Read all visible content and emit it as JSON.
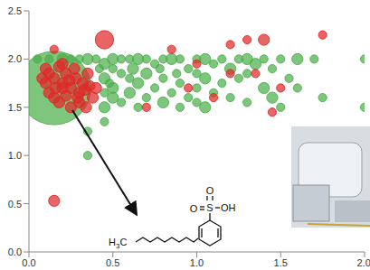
{
  "chart_data": {
    "type": "scatter",
    "xlim": [
      0,
      2
    ],
    "ylim": [
      0,
      2.5
    ],
    "xticks": [
      {
        "value": 0,
        "label": "0.0"
      },
      0.5,
      {
        "value": 1,
        "label": "1.0"
      },
      1.5,
      {
        "value": 2,
        "label": "2.0"
      }
    ],
    "yticks": [
      {
        "value": 0,
        "label": "0.0"
      },
      0.5,
      {
        "value": 1,
        "label": "1.0"
      },
      1.5,
      {
        "value": 2,
        "label": "2.0"
      },
      2.5
    ],
    "grid": false,
    "series": [
      {
        "color": "#4cae4c",
        "marker": "circle",
        "x": [
          0.15,
          0.05,
          0.12,
          0.2,
          0.25,
          0.3,
          0.35,
          0.4,
          0.5,
          0.55,
          0.6,
          0.65,
          0.7,
          0.8,
          0.85,
          0.9,
          1.0,
          1.05,
          1.15,
          1.25,
          1.3,
          1.4,
          1.5,
          1.6,
          1.7,
          2.0,
          0.45,
          0.75,
          1.1,
          1.35,
          0.42,
          0.5,
          0.62,
          0.78,
          0.95,
          1.2,
          1.45,
          0.55,
          0.7,
          0.88,
          1.0,
          1.3,
          0.45,
          0.6,
          0.8,
          1.05,
          1.25,
          1.55,
          0.48,
          0.65,
          0.9,
          1.15,
          0.5,
          0.75,
          1.0,
          1.4,
          1.6,
          0.45,
          0.6,
          0.85,
          1.1,
          0.5,
          0.7,
          0.95,
          1.2,
          1.45,
          1.75,
          0.55,
          0.8,
          1.0,
          1.3,
          0.45,
          0.65,
          0.9,
          1.05,
          1.5,
          2.0,
          0.35,
          0.35,
          0.45
        ],
        "y": [
          1.7,
          2.0,
          2.0,
          2.0,
          2.0,
          2.0,
          2.0,
          2.0,
          2.0,
          2.0,
          2.0,
          2.0,
          2.0,
          2.0,
          2.0,
          2.0,
          2.0,
          2.0,
          2.0,
          2.0,
          2.0,
          2.0,
          2.0,
          2.0,
          2.0,
          2.0,
          1.95,
          1.95,
          1.95,
          1.95,
          1.9,
          1.9,
          1.9,
          1.9,
          1.9,
          1.9,
          1.9,
          1.85,
          1.85,
          1.85,
          1.85,
          1.85,
          1.8,
          1.8,
          1.8,
          1.8,
          1.8,
          1.8,
          1.75,
          1.75,
          1.75,
          1.75,
          1.7,
          1.7,
          1.7,
          1.7,
          1.7,
          1.65,
          1.65,
          1.65,
          1.65,
          1.6,
          1.6,
          1.6,
          1.6,
          1.6,
          1.6,
          1.55,
          1.55,
          1.55,
          1.55,
          1.5,
          1.5,
          1.5,
          1.5,
          1.5,
          1.5,
          1.25,
          1.0,
          1.35
        ],
        "size": [
          100,
          1,
          1,
          2,
          1,
          1,
          2,
          1,
          2,
          1,
          1,
          2,
          1,
          1,
          2,
          1,
          1,
          2,
          1,
          1,
          2,
          1,
          1,
          2,
          1,
          1,
          2,
          1,
          1,
          2,
          1,
          1,
          2,
          1,
          1,
          2,
          1,
          1,
          2,
          1,
          1,
          1,
          2,
          1,
          1,
          2,
          1,
          1,
          1,
          2,
          1,
          1,
          2,
          1,
          1,
          2,
          1,
          1,
          2,
          1,
          1,
          2,
          1,
          1,
          1,
          2,
          1,
          1,
          2,
          1,
          1,
          2,
          1,
          1,
          2,
          1,
          1,
          1,
          1,
          1
        ]
      },
      {
        "color": "#e02828",
        "marker": "circle",
        "x": [
          0.45,
          0.15,
          0.15,
          0.1,
          0.12,
          0.15,
          0.18,
          0.2,
          0.22,
          0.25,
          0.28,
          0.3,
          0.32,
          0.35,
          0.38,
          0.12,
          0.15,
          0.18,
          0.2,
          0.22,
          0.25,
          0.27,
          0.3,
          0.33,
          0.36,
          0.1,
          0.16,
          0.24,
          0.29,
          0.34,
          0.4,
          0.2,
          0.08,
          1.3,
          1.4,
          1.75,
          1.2,
          0.85,
          1.0,
          1.2,
          1.35,
          0.95,
          1.1,
          1.5,
          0.7,
          1.45
        ],
        "y": [
          2.2,
          0.53,
          2.1,
          1.9,
          1.85,
          1.8,
          1.92,
          1.75,
          1.85,
          1.7,
          1.8,
          1.65,
          1.75,
          1.85,
          1.6,
          1.65,
          1.6,
          1.55,
          1.7,
          1.62,
          1.5,
          1.9,
          1.55,
          1.68,
          1.72,
          1.75,
          1.7,
          1.78,
          1.6,
          1.5,
          1.7,
          1.95,
          1.8,
          2.2,
          2.2,
          2.25,
          2.15,
          2.1,
          1.95,
          1.85,
          1.85,
          1.7,
          1.6,
          1.7,
          1.5,
          1.45
        ],
        "size": [
          6,
          2,
          1,
          2,
          2,
          2,
          2,
          2,
          2,
          2,
          2,
          2,
          2,
          2,
          2,
          2,
          2,
          2,
          2,
          2,
          2,
          2,
          2,
          2,
          2,
          2,
          2,
          2,
          2,
          2,
          2,
          2,
          2,
          1,
          2,
          1,
          1,
          1,
          1,
          1,
          1,
          1,
          1,
          1,
          1,
          1
        ]
      }
    ],
    "annotations": {
      "structure": {
        "methyl": "H3C",
        "sulfur": "S",
        "oxygen_top": "O",
        "oxygen_left": "O",
        "hydroxyl": "OH"
      }
    }
  }
}
